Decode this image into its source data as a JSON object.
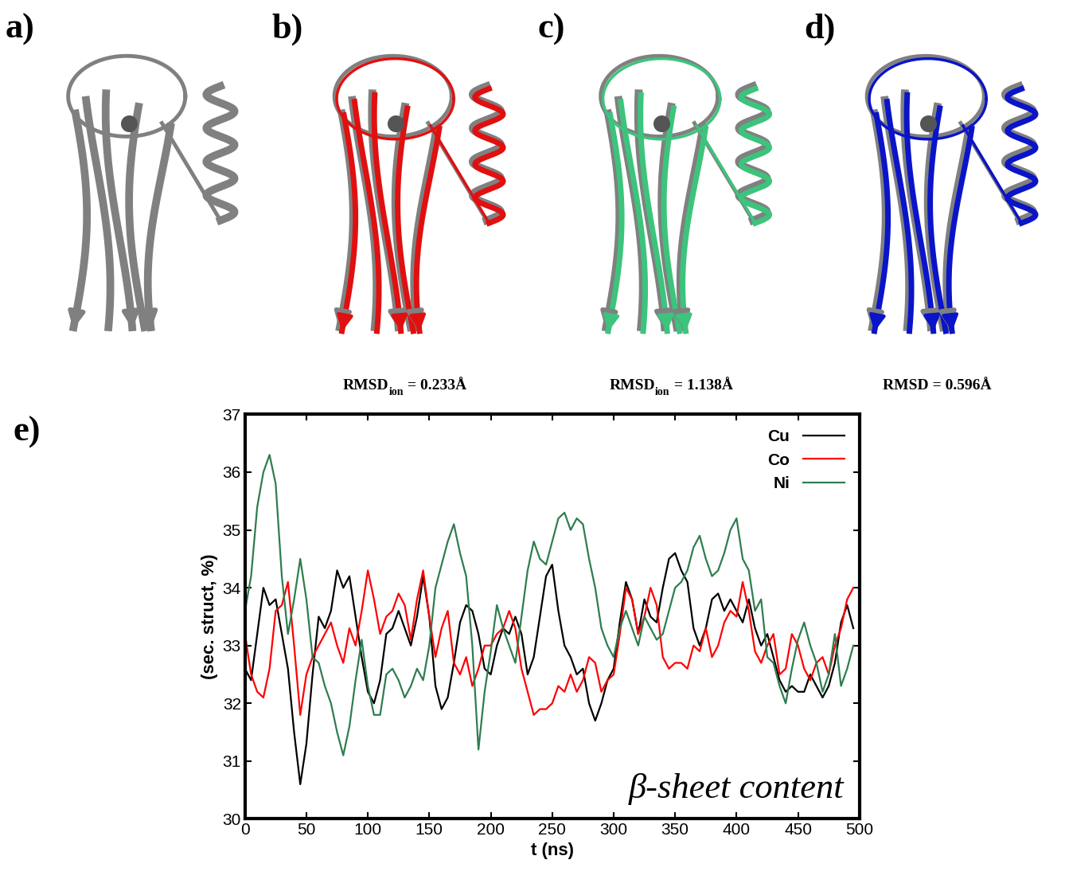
{
  "panels": [
    {
      "label": "a)"
    },
    {
      "label": "b)",
      "color": "#e01010",
      "caption": "RMSD",
      "subscript": "ion",
      "caption_rest": " = 0.233Å"
    },
    {
      "label": "c)",
      "color": "#3cc47c",
      "caption": "RMSD",
      "subscript": "ion",
      "caption_rest": " = 1.138Å"
    },
    {
      "label": "d)",
      "color": "#0a14c8",
      "caption": "RMSD = 0.596Å"
    }
  ],
  "chart_data": {
    "type": "line",
    "panel_label": "e)",
    "x_label": "t (ns)",
    "y_label": "(sec. struct, %)",
    "annotations": [
      "β-sheet content"
    ],
    "xlim": [
      0,
      500
    ],
    "xticks": [
      0,
      50,
      100,
      150,
      200,
      250,
      300,
      350,
      400,
      450,
      500
    ],
    "ylim": [
      30,
      37
    ],
    "yticks": [
      30,
      31,
      32,
      33,
      34,
      35,
      36,
      37
    ],
    "legend": "upper right",
    "grid": false,
    "x": [
      0,
      5,
      10,
      15,
      20,
      25,
      30,
      35,
      40,
      45,
      50,
      55,
      60,
      65,
      70,
      75,
      80,
      85,
      90,
      95,
      100,
      105,
      110,
      115,
      120,
      125,
      130,
      135,
      140,
      145,
      150,
      155,
      160,
      165,
      170,
      175,
      180,
      185,
      190,
      195,
      200,
      205,
      210,
      215,
      220,
      225,
      230,
      235,
      240,
      245,
      250,
      255,
      260,
      265,
      270,
      275,
      280,
      285,
      290,
      295,
      300,
      305,
      310,
      315,
      320,
      325,
      330,
      335,
      340,
      345,
      350,
      355,
      360,
      365,
      370,
      375,
      380,
      385,
      390,
      395,
      400,
      405,
      410,
      415,
      420,
      425,
      430,
      435,
      440,
      445,
      450,
      455,
      460,
      465,
      470,
      475,
      480,
      485,
      490,
      495
    ],
    "series": [
      {
        "name": "Cu",
        "color": "#000000",
        "values": [
          32.6,
          32.4,
          33.2,
          34.0,
          33.7,
          33.8,
          33.2,
          32.6,
          31.5,
          30.6,
          31.3,
          32.5,
          33.5,
          33.3,
          33.6,
          34.3,
          34.0,
          34.2,
          33.5,
          32.8,
          32.2,
          32.0,
          32.4,
          33.2,
          33.3,
          33.6,
          33.3,
          33.0,
          33.5,
          34.2,
          33.5,
          32.3,
          31.9,
          32.1,
          32.7,
          33.4,
          33.7,
          33.6,
          33.2,
          32.6,
          32.5,
          33.0,
          33.3,
          33.2,
          33.5,
          33.2,
          32.5,
          32.8,
          33.5,
          34.2,
          34.4,
          33.6,
          33.0,
          32.8,
          32.5,
          32.6,
          32.0,
          31.7,
          32.0,
          32.4,
          32.6,
          33.4,
          34.1,
          33.8,
          33.2,
          33.8,
          33.5,
          33.4,
          34.0,
          34.5,
          34.6,
          34.3,
          34.1,
          33.3,
          33.0,
          33.3,
          33.8,
          33.9,
          33.6,
          33.8,
          33.6,
          33.4,
          33.8,
          33.3,
          33.0,
          33.2,
          32.8,
          32.4,
          32.2,
          32.3,
          32.2,
          32.2,
          32.5,
          32.3,
          32.1,
          32.3,
          32.7,
          33.4,
          33.7,
          33.3
        ]
      },
      {
        "name": "Co",
        "color": "#ff0000",
        "values": [
          33.2,
          32.5,
          32.2,
          32.1,
          32.6,
          33.6,
          33.7,
          34.1,
          33.0,
          31.8,
          32.5,
          32.8,
          33.0,
          33.2,
          33.4,
          33.0,
          32.7,
          33.3,
          33.0,
          33.6,
          34.3,
          33.8,
          33.2,
          33.5,
          33.6,
          33.9,
          33.7,
          33.1,
          33.8,
          34.3,
          33.5,
          32.8,
          33.3,
          33.6,
          32.7,
          32.5,
          32.8,
          32.3,
          32.6,
          33.0,
          33.0,
          33.2,
          33.3,
          33.6,
          33.3,
          32.6,
          32.2,
          31.8,
          31.9,
          31.9,
          32.0,
          32.3,
          32.2,
          32.5,
          32.2,
          32.4,
          32.8,
          32.7,
          32.2,
          32.4,
          32.5,
          33.2,
          34.0,
          33.8,
          33.2,
          33.5,
          34.0,
          33.7,
          32.8,
          32.6,
          32.7,
          32.7,
          32.6,
          33.0,
          32.9,
          33.3,
          32.8,
          33.0,
          33.4,
          33.6,
          33.5,
          34.1,
          33.6,
          32.9,
          32.7,
          33.0,
          33.2,
          32.5,
          32.6,
          33.2,
          33.0,
          32.6,
          32.4,
          32.7,
          32.8,
          32.5,
          33.0,
          33.3,
          33.8,
          34.0
        ]
      },
      {
        "name": "Ni",
        "color": "#2e7d4f",
        "values": [
          33.6,
          34.2,
          35.4,
          36.0,
          36.3,
          35.8,
          34.2,
          33.2,
          33.8,
          34.5,
          33.8,
          32.8,
          32.7,
          32.3,
          32.0,
          31.5,
          31.1,
          31.6,
          32.4,
          33.1,
          32.3,
          31.8,
          31.8,
          32.5,
          32.6,
          32.4,
          32.1,
          32.3,
          32.6,
          32.4,
          33.0,
          34.0,
          34.4,
          34.8,
          35.1,
          34.6,
          34.2,
          33.0,
          31.2,
          32.2,
          32.9,
          33.7,
          33.3,
          33.0,
          32.7,
          33.5,
          34.3,
          34.8,
          34.5,
          34.4,
          34.8,
          35.2,
          35.3,
          35.0,
          35.2,
          35.1,
          34.5,
          34.0,
          33.3,
          33.0,
          32.8,
          33.3,
          33.6,
          33.3,
          33.0,
          33.5,
          33.3,
          33.1,
          33.2,
          33.6,
          34.0,
          34.1,
          34.3,
          34.7,
          34.9,
          34.5,
          34.2,
          34.3,
          34.6,
          35.0,
          35.2,
          34.5,
          34.3,
          33.6,
          33.8,
          32.8,
          32.7,
          32.3,
          32.0,
          32.6,
          33.1,
          33.4,
          33.0,
          32.7,
          32.2,
          32.5,
          33.2,
          32.3,
          32.6,
          33.0
        ]
      }
    ]
  }
}
